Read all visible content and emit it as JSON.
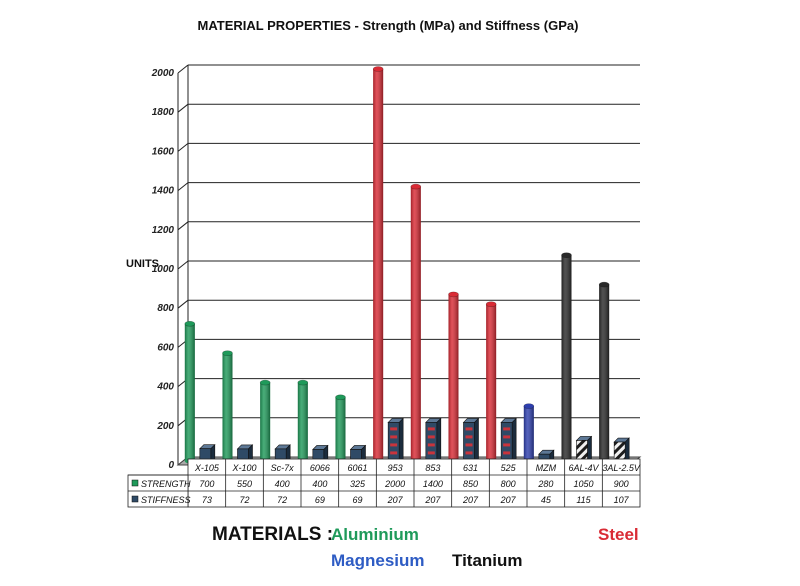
{
  "chart_data": {
    "type": "bar",
    "title": "MATERIAL PROPERTIES - Strength (MPa) and Stiffness (GPa)",
    "ylabel": "UNITS",
    "ylim": [
      0,
      2000
    ],
    "yticks": [
      "0",
      "200",
      "400",
      "600",
      "800",
      "1000",
      "1200",
      "1400",
      "1600",
      "1800",
      "2000"
    ],
    "grid": true,
    "categories": [
      "X-105",
      "X-100",
      "Sc-7x",
      "6066",
      "6061",
      "953",
      "853",
      "631",
      "525",
      "MZM",
      "6AL-4V",
      "3AL-2.5V"
    ],
    "groups": [
      "aluminium",
      "aluminium",
      "aluminium",
      "aluminium",
      "aluminium",
      "steel",
      "steel",
      "steel",
      "steel",
      "magnesium",
      "titanium",
      "titanium"
    ],
    "series": [
      {
        "name": "STRENGTH",
        "values": [
          700,
          550,
          400,
          400,
          325,
          2000,
          1400,
          850,
          800,
          280,
          1050,
          900
        ]
      },
      {
        "name": "STIFFNESS",
        "values": [
          73,
          72,
          72,
          69,
          69,
          207,
          207,
          207,
          207,
          45,
          115,
          107
        ]
      }
    ],
    "table": {
      "rows": [
        {
          "label": "STRENGTH",
          "cells": [
            "700",
            "550",
            "400",
            "400",
            "325",
            "2000",
            "1400",
            "850",
            "800",
            "280",
            "1050",
            "900"
          ]
        },
        {
          "label": "STIFFNESS",
          "cells": [
            "73",
            "72",
            "72",
            "69",
            "69",
            "207",
            "207",
            "207",
            "207",
            "45",
            "115",
            "107"
          ]
        }
      ]
    },
    "group_colors": {
      "aluminium": "#1f9a5a",
      "steel": "#d92b35",
      "magnesium": "#2e3fae",
      "titanium": "#2a2a2a"
    },
    "stiffness_color": "#2f4a66"
  },
  "legend": {
    "heading": "MATERIALS :",
    "items": [
      {
        "label": "Aluminium",
        "color": "#1f9a5a"
      },
      {
        "label": "Steel",
        "color": "#d92b35"
      },
      {
        "label": "Magnesium",
        "color": "#2e5cc4"
      },
      {
        "label": "Titanium",
        "color": "#111111"
      }
    ]
  }
}
